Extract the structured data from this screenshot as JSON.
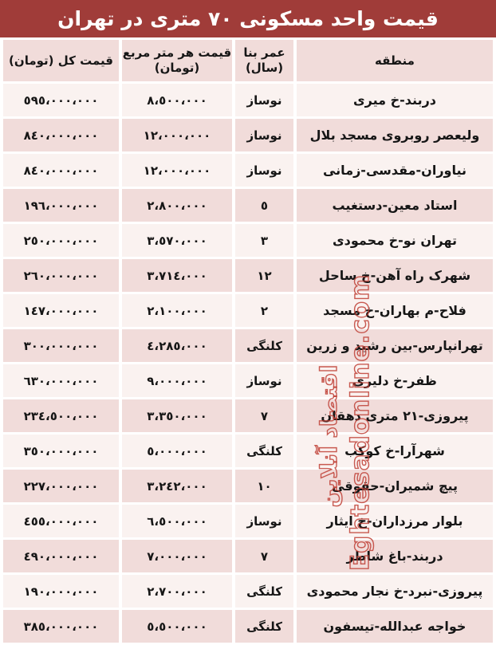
{
  "title": "قیمت واحد مسکونی ٧٠ متری در تهران",
  "table": {
    "headers": {
      "region": "منطقه",
      "age": "عمر بنا\n(سال)",
      "price_per_m2": "قیمت هر متر مربع\n(تومان)",
      "total_price": "قیمت کل (تومان)"
    },
    "rows": [
      {
        "region": "دربند-خ میری",
        "age": "نوساز",
        "price_per_m2": "٨،٥٠٠،٠٠٠",
        "total_price": "٥٩٥،٠٠٠،٠٠٠"
      },
      {
        "region": "ولیعصر روبروی مسجد بلال",
        "age": "نوساز",
        "price_per_m2": "١٢،٠٠٠،٠٠٠",
        "total_price": "٨٤٠،٠٠٠،٠٠٠"
      },
      {
        "region": "نیاوران-مقدسی-زمانی",
        "age": "نوساز",
        "price_per_m2": "١٢،٠٠٠،٠٠٠",
        "total_price": "٨٤٠،٠٠٠،٠٠٠"
      },
      {
        "region": "استاد معین-دستغیب",
        "age": "٥",
        "price_per_m2": "٢،٨٠٠،٠٠٠",
        "total_price": "١٩٦،٠٠٠،٠٠٠"
      },
      {
        "region": "تهران نو-خ محمودی",
        "age": "٣",
        "price_per_m2": "٣،٥٧٠،٠٠٠",
        "total_price": "٢٥٠،٠٠٠،٠٠٠"
      },
      {
        "region": "شهرک راه آهن-خ ساحل",
        "age": "١٢",
        "price_per_m2": "٣،٧١٤،٠٠٠",
        "total_price": "٢٦٠،٠٠٠،٠٠٠"
      },
      {
        "region": "فلاح-م بهاران-خ مسجد",
        "age": "٢",
        "price_per_m2": "٢،١٠٠،٠٠٠",
        "total_price": "١٤٧،٠٠٠،٠٠٠"
      },
      {
        "region": "تهرانپارس-بین رشید و زرین",
        "age": "کلنگی",
        "price_per_m2": "٤،٢٨٥،٠٠٠",
        "total_price": "٣٠٠،٠٠٠،٠٠٠"
      },
      {
        "region": "ظفر-خ دلیری",
        "age": "نوساز",
        "price_per_m2": "٩،٠٠٠،٠٠٠",
        "total_price": "٦٣٠،٠٠٠،٠٠٠"
      },
      {
        "region": "پیروزی-٢١ متری دهقان",
        "age": "٧",
        "price_per_m2": "٣،٣٥٠،٠٠٠",
        "total_price": "٢٣٤،٥٠٠،٠٠٠"
      },
      {
        "region": "شهرآرا-خ کوکب",
        "age": "کلنگی",
        "price_per_m2": "٥،٠٠٠،٠٠٠",
        "total_price": "٣٥٠،٠٠٠،٠٠٠"
      },
      {
        "region": "پیچ شمیران-حقوقی",
        "age": "١٠",
        "price_per_m2": "٣،٢٤٢،٠٠٠",
        "total_price": "٢٢٧،٠٠٠،٠٠٠"
      },
      {
        "region": "بلوار مرزداران-خ ایثار",
        "age": "نوساز",
        "price_per_m2": "٦،٥٠٠،٠٠٠",
        "total_price": "٤٥٥،٠٠٠،٠٠٠"
      },
      {
        "region": "دربند-باغ شاطر",
        "age": "٧",
        "price_per_m2": "٧،٠٠٠،٠٠٠",
        "total_price": "٤٩٠،٠٠٠،٠٠٠"
      },
      {
        "region": "پیروزی-نبرد-خ نجار محمودی",
        "age": "کلنگی",
        "price_per_m2": "٢،٧٠٠،٠٠٠",
        "total_price": "١٩٠،٠٠٠،٠٠٠"
      },
      {
        "region": "خواجه عبدالله-تیسفون",
        "age": "کلنگی",
        "price_per_m2": "٥،٥٠٠،٠٠٠",
        "total_price": "٣٨٥،٠٠٠،٠٠٠"
      }
    ]
  },
  "watermark": {
    "persian": "اقتصاد آنلاین",
    "latin": "Eghtesadonline.com"
  },
  "colors": {
    "title_bg": "#a03c39",
    "title_text": "#ffffff",
    "header_bg": "#f1dcda",
    "row_light": "#faf2f0",
    "row_dark": "#f1dcda",
    "cell_text": "#161616",
    "watermark_red": "#be3e34"
  },
  "chart_data": {
    "type": "table",
    "title": "قیمت واحد مسکونی ٧٠ متری در تهران",
    "title_en": "Price of 70 m2 residential units in Tehran (Toman)",
    "columns": [
      "منطقه",
      "عمر بنا (سال)",
      "قیمت هر متر مربع (تومان)",
      "قیمت کل (تومان)"
    ],
    "rows": [
      {
        "region": "دربند-خ میری",
        "age": "نوساز",
        "price_per_m2": 8500000,
        "total_price": 595000000
      },
      {
        "region": "ولیعصر روبروی مسجد بلال",
        "age": "نوساز",
        "price_per_m2": 12000000,
        "total_price": 840000000
      },
      {
        "region": "نیاوران-مقدسی-زمانی",
        "age": "نوساز",
        "price_per_m2": 12000000,
        "total_price": 840000000
      },
      {
        "region": "استاد معین-دستغیب",
        "age": 5,
        "price_per_m2": 2800000,
        "total_price": 196000000
      },
      {
        "region": "تهران نو-خ محمودی",
        "age": 3,
        "price_per_m2": 3570000,
        "total_price": 250000000
      },
      {
        "region": "شهرک راه آهن-خ ساحل",
        "age": 12,
        "price_per_m2": 3714000,
        "total_price": 260000000
      },
      {
        "region": "فلاح-م بهاران-خ مسجد",
        "age": 2,
        "price_per_m2": 2100000,
        "total_price": 147000000
      },
      {
        "region": "تهرانپارس-بین رشید و زرین",
        "age": "کلنگی",
        "price_per_m2": 4285000,
        "total_price": 300000000
      },
      {
        "region": "ظفر-خ دلیری",
        "age": "نوساز",
        "price_per_m2": 9000000,
        "total_price": 630000000
      },
      {
        "region": "پیروزی-٢١ متری دهقان",
        "age": 7,
        "price_per_m2": 3350000,
        "total_price": 234500000
      },
      {
        "region": "شهرآرا-خ کوکب",
        "age": "کلنگی",
        "price_per_m2": 5000000,
        "total_price": 350000000
      },
      {
        "region": "پیچ شمیران-حقوقی",
        "age": 10,
        "price_per_m2": 3242000,
        "total_price": 227000000
      },
      {
        "region": "بلوار مرزداران-خ ایثار",
        "age": "نوساز",
        "price_per_m2": 6500000,
        "total_price": 455000000
      },
      {
        "region": "دربند-باغ شاطر",
        "age": 7,
        "price_per_m2": 7000000,
        "total_price": 490000000
      },
      {
        "region": "پیروزی-نبرد-خ نجار محمودی",
        "age": "کلنگی",
        "price_per_m2": 2700000,
        "total_price": 190000000
      },
      {
        "region": "خواجه عبدالله-تیسفون",
        "age": "کلنگی",
        "price_per_m2": 5500000,
        "total_price": 385000000
      }
    ]
  }
}
